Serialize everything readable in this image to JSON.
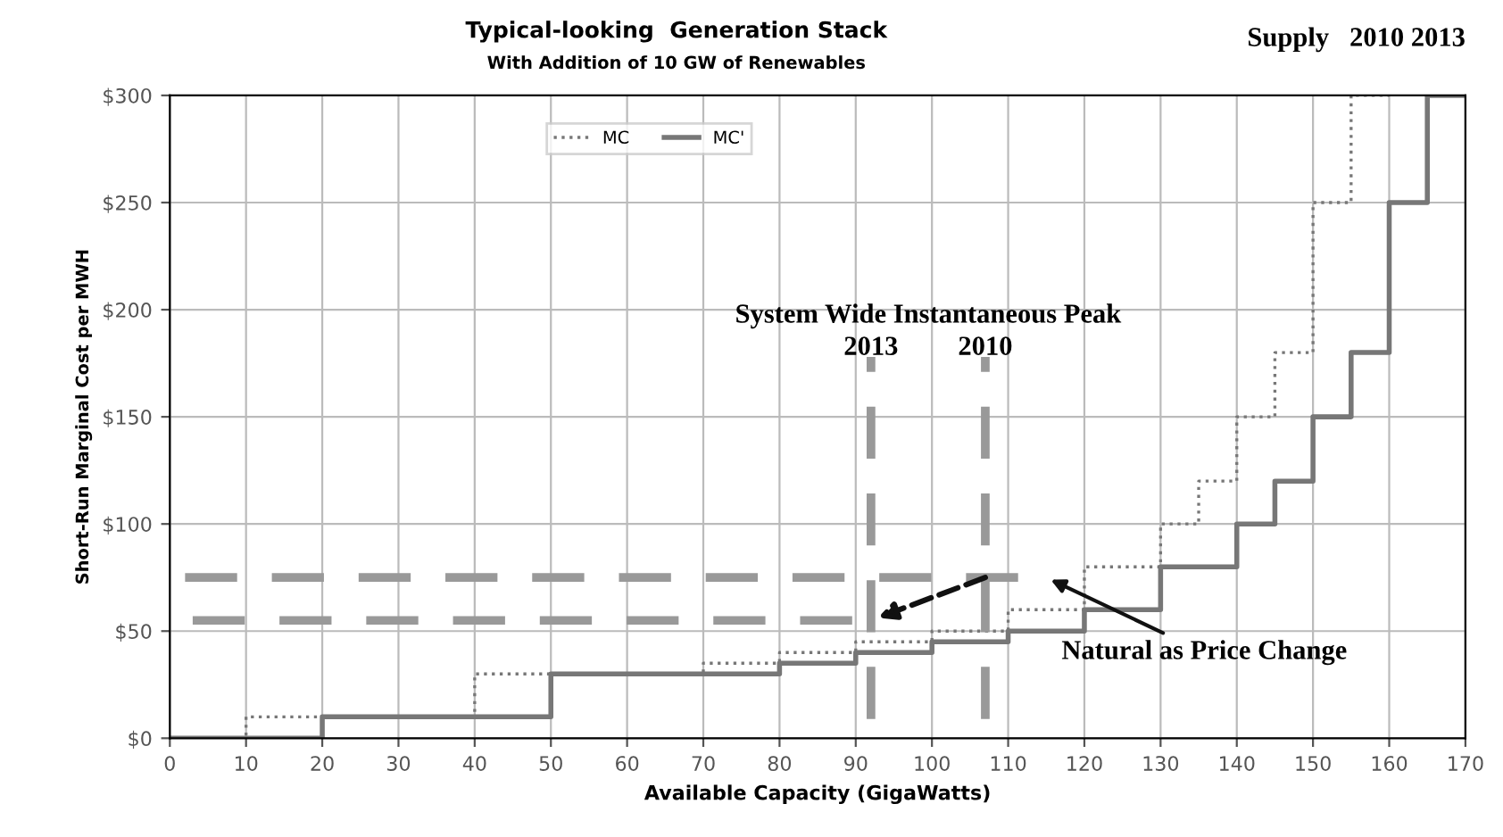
{
  "chart_data": {
    "type": "step",
    "title": "Typical-looking  Generation Stack",
    "subtitle": "With Addition of 10 GW of Renewables",
    "xlabel": "Available Capacity (GigaWatts)",
    "ylabel": "Short-Run Marginal Cost per MWH",
    "series": [
      {
        "name": "MC",
        "color": "#777777",
        "line_style": "dotted",
        "x": [
          0,
          10,
          40,
          70,
          80,
          90,
          100,
          110,
          120,
          130,
          135,
          140,
          145,
          150,
          155,
          160
        ],
        "values": [
          0,
          10,
          30,
          35,
          40,
          45,
          50,
          60,
          80,
          100,
          120,
          150,
          180,
          250,
          300,
          300
        ]
      },
      {
        "name": "MC'",
        "color": "#777777",
        "line_style": "solid",
        "x": [
          0,
          20,
          50,
          80,
          90,
          100,
          110,
          120,
          130,
          140,
          145,
          150,
          155,
          160,
          165,
          170
        ],
        "values": [
          0,
          10,
          30,
          35,
          40,
          45,
          50,
          60,
          80,
          100,
          120,
          150,
          180,
          250,
          300,
          300
        ]
      },
      {
        "type": "line",
        "color": "#999999",
        "line_style": "dashed",
        "x": [
          2,
          115
        ],
        "values": [
          75,
          75
        ]
      },
      {
        "type": "line",
        "color": "#999999",
        "line_style": "dashed",
        "x": [
          3,
          92
        ],
        "values": [
          55,
          55
        ]
      },
      {
        "type": "line",
        "color": "#999999",
        "line_style": "dashed",
        "x": [
          92,
          92
        ],
        "values": [
          9,
          178
        ]
      },
      {
        "type": "line",
        "color": "#999999",
        "line_style": "dashed",
        "x": [
          107,
          107
        ],
        "values": [
          9,
          178
        ]
      }
    ],
    "annotations": [
      "Supply   2010 2013",
      "System Wide Instantaneous Peak",
      {
        "text": "2013",
        "x": 92,
        "y": 182
      },
      {
        "text": "2010",
        "x": 107,
        "y": 182
      },
      {
        "text": "Natural as Price Change",
        "x": 115,
        "y": 75
      }
    ],
    "xlim": [
      0,
      170
    ],
    "xticks": [
      0,
      10,
      20,
      30,
      40,
      50,
      60,
      70,
      80,
      90,
      100,
      110,
      120,
      130,
      140,
      150,
      160,
      170
    ],
    "ylim": [
      0,
      300
    ],
    "yticks": [
      {
        "value": 0,
        "label": "$0"
      },
      {
        "value": 50,
        "label": "$50"
      },
      {
        "value": 100,
        "label": "$100"
      },
      {
        "value": 150,
        "label": "$150"
      },
      {
        "value": 200,
        "label": "$200"
      },
      {
        "value": 250,
        "label": "$250"
      },
      {
        "value": 300,
        "label": "$300"
      }
    ],
    "grid": true,
    "legend": "top",
    "marker": "none"
  }
}
